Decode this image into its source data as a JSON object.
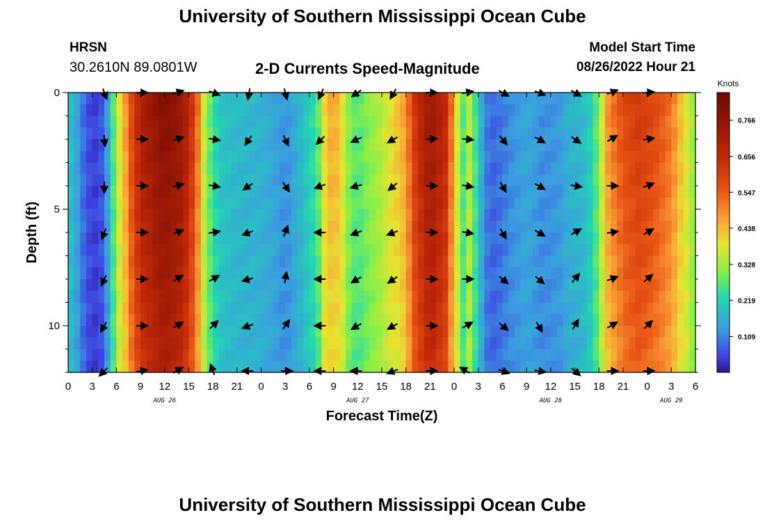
{
  "header": {
    "title_top": "University of Southern Mississippi Ocean Cube",
    "title_bottom": "University of Southern Mississippi Ocean Cube",
    "station": "HRSN",
    "coords": "30.2610N  89.0801W",
    "plot_title": "2-D Currents Speed-Magnitude",
    "model_label": "Model Start Time",
    "model_time": "08/26/2022 Hour 21"
  },
  "chart_data": {
    "type": "heatmap",
    "title": "2-D Currents Speed-Magnitude",
    "xlabel": "Forecast Time(Z)",
    "ylabel": "Depth (ft)",
    "units": "Knots",
    "x_start_hour": 0,
    "x_end_hour": 78,
    "x_ticks": [
      "0",
      "3",
      "6",
      "9",
      "12",
      "15",
      "18",
      "21",
      "0",
      "3",
      "6",
      "9",
      "12",
      "15",
      "18",
      "21",
      "0",
      "3",
      "6",
      "9",
      "12",
      "15",
      "18",
      "21",
      "0",
      "3",
      "6"
    ],
    "y_ticks": [
      "0",
      "5",
      "10"
    ],
    "ylim": [
      0,
      12
    ],
    "date_labels": [
      {
        "label": "AUG 26",
        "hour": 12
      },
      {
        "label": "AUG 27",
        "hour": 36
      },
      {
        "label": "AUG 28",
        "hour": 60
      },
      {
        "label": "AUG 29",
        "hour": 75
      }
    ],
    "colorbar_ticks": [
      "0.766",
      "0.656",
      "0.547",
      "0.438",
      "0.328",
      "0.219",
      "0.109"
    ],
    "colorbar_values": [
      0.766,
      0.656,
      0.547,
      0.438,
      0.328,
      0.219,
      0.109
    ],
    "colorbar_range": [
      0.0,
      0.85
    ],
    "speed_profile": [
      {
        "hour": 0,
        "v": 0.2
      },
      {
        "hour": 1,
        "v": 0.15
      },
      {
        "hour": 2,
        "v": 0.08
      },
      {
        "hour": 3,
        "v": 0.04
      },
      {
        "hour": 4,
        "v": 0.05
      },
      {
        "hour": 5,
        "v": 0.15
      },
      {
        "hour": 6,
        "v": 0.34
      },
      {
        "hour": 7,
        "v": 0.46
      },
      {
        "hour": 8,
        "v": 0.6
      },
      {
        "hour": 9,
        "v": 0.7
      },
      {
        "hour": 11,
        "v": 0.77
      },
      {
        "hour": 12,
        "v": 0.8
      },
      {
        "hour": 14,
        "v": 0.75
      },
      {
        "hour": 15,
        "v": 0.68
      },
      {
        "hour": 16,
        "v": 0.55
      },
      {
        "hour": 17,
        "v": 0.34
      },
      {
        "hour": 18,
        "v": 0.25
      },
      {
        "hour": 19,
        "v": 0.2
      },
      {
        "hour": 21,
        "v": 0.18
      },
      {
        "hour": 24,
        "v": 0.17
      },
      {
        "hour": 26,
        "v": 0.14
      },
      {
        "hour": 27,
        "v": 0.12
      },
      {
        "hour": 29,
        "v": 0.18
      },
      {
        "hour": 31,
        "v": 0.26
      },
      {
        "hour": 32,
        "v": 0.42
      },
      {
        "hour": 33,
        "v": 0.48
      },
      {
        "hour": 34,
        "v": 0.4
      },
      {
        "hour": 35,
        "v": 0.3
      },
      {
        "hour": 36,
        "v": 0.27
      },
      {
        "hour": 37,
        "v": 0.3
      },
      {
        "hour": 39,
        "v": 0.35
      },
      {
        "hour": 42,
        "v": 0.48
      },
      {
        "hour": 43,
        "v": 0.62
      },
      {
        "hour": 45,
        "v": 0.75
      },
      {
        "hour": 47,
        "v": 0.66
      },
      {
        "hour": 48,
        "v": 0.45
      },
      {
        "hour": 49,
        "v": 0.26
      },
      {
        "hour": 50,
        "v": 0.36
      },
      {
        "hour": 51,
        "v": 0.2
      },
      {
        "hour": 52,
        "v": 0.1
      },
      {
        "hour": 53,
        "v": 0.08
      },
      {
        "hour": 55,
        "v": 0.12
      },
      {
        "hour": 57,
        "v": 0.15
      },
      {
        "hour": 59,
        "v": 0.12
      },
      {
        "hour": 61,
        "v": 0.13
      },
      {
        "hour": 62,
        "v": 0.16
      },
      {
        "hour": 64,
        "v": 0.18
      },
      {
        "hour": 65,
        "v": 0.22
      },
      {
        "hour": 66,
        "v": 0.3
      },
      {
        "hour": 67,
        "v": 0.48
      },
      {
        "hour": 69,
        "v": 0.58
      },
      {
        "hour": 71,
        "v": 0.62
      },
      {
        "hour": 73,
        "v": 0.58
      },
      {
        "hour": 75,
        "v": 0.52
      },
      {
        "hour": 76,
        "v": 0.45
      },
      {
        "hour": 77,
        "v": 0.38
      },
      {
        "hour": 78,
        "v": 0.3
      }
    ],
    "arrow_depths_ft": [
      0,
      2,
      4,
      6,
      8,
      10,
      12
    ],
    "arrow_columns": [
      {
        "hour": 4.5,
        "dirs": [
          160,
          175,
          180,
          200,
          205,
          210,
          225
        ]
      },
      {
        "hour": 9,
        "dirs": [
          90,
          90,
          90,
          90,
          90,
          90,
          80
        ]
      },
      {
        "hour": 13.5,
        "dirs": [
          75,
          75,
          75,
          70,
          60,
          60,
          60
        ]
      },
      {
        "hour": 18,
        "dirs": [
          110,
          100,
          100,
          80,
          60,
          45,
          340
        ]
      },
      {
        "hour": 22.5,
        "dirs": [
          190,
          215,
          235,
          250,
          255,
          250,
          270
        ]
      },
      {
        "hour": 27,
        "dirs": [
          165,
          155,
          145,
          20,
          10,
          35,
          90
        ]
      },
      {
        "hour": 31.5,
        "dirs": [
          205,
          225,
          250,
          270,
          270,
          270,
          270
        ]
      },
      {
        "hour": 36,
        "dirs": [
          235,
          245,
          255,
          250,
          240,
          240,
          270
        ]
      },
      {
        "hour": 40.5,
        "dirs": [
          210,
          240,
          230,
          250,
          235,
          240,
          250
        ]
      },
      {
        "hour": 45,
        "dirs": [
          90,
          85,
          90,
          90,
          90,
          90,
          90
        ]
      },
      {
        "hour": 49.5,
        "dirs": [
          80,
          95,
          100,
          100,
          90,
          60,
          300
        ]
      },
      {
        "hour": 54,
        "dirs": [
          120,
          140,
          150,
          150,
          130,
          130,
          110
        ]
      },
      {
        "hour": 58.5,
        "dirs": [
          110,
          120,
          120,
          120,
          130,
          150,
          100
        ]
      },
      {
        "hour": 63,
        "dirs": [
          120,
          125,
          100,
          60,
          40,
          30,
          130
        ]
      },
      {
        "hour": 67.5,
        "dirs": [
          70,
          60,
          90,
          80,
          70,
          60,
          90
        ]
      },
      {
        "hour": 72,
        "dirs": [
          85,
          80,
          70,
          60,
          50,
          45,
          90
        ]
      }
    ]
  }
}
